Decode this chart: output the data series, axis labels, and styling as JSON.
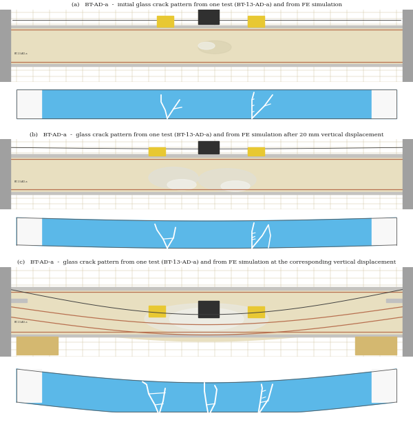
{
  "figsize": [
    6.0,
    6.42
  ],
  "dpi": 100,
  "bg_color": "#ffffff",
  "panel_labels": [
    "(a)   BT-AD-a  -  initial glass crack pattern from one test (BT-13-AD-a) and from FE simulation",
    "(b)   BT-AD-a  -  glass crack pattern from one test (BT-13-AD-a) and from FE simulation after 20 mm vertical displacement",
    "(c)   BT-AD-a  -  glass crack pattern from one test (BT-13-AD-a) and from FE simulation at the corresponding vertical displacement"
  ],
  "photo_bg": "#ddd0a8",
  "sim_bg": "#5bb8e8",
  "crack_color": "#ffffff",
  "label_fontsize": 6.0,
  "sim_border_color": "#555555",
  "photo_frame_color": "#888888",
  "photo_bar_color": "#b0b0b0",
  "yellow_block_color": "#e8c832",
  "dark_equip_color": "#444444"
}
